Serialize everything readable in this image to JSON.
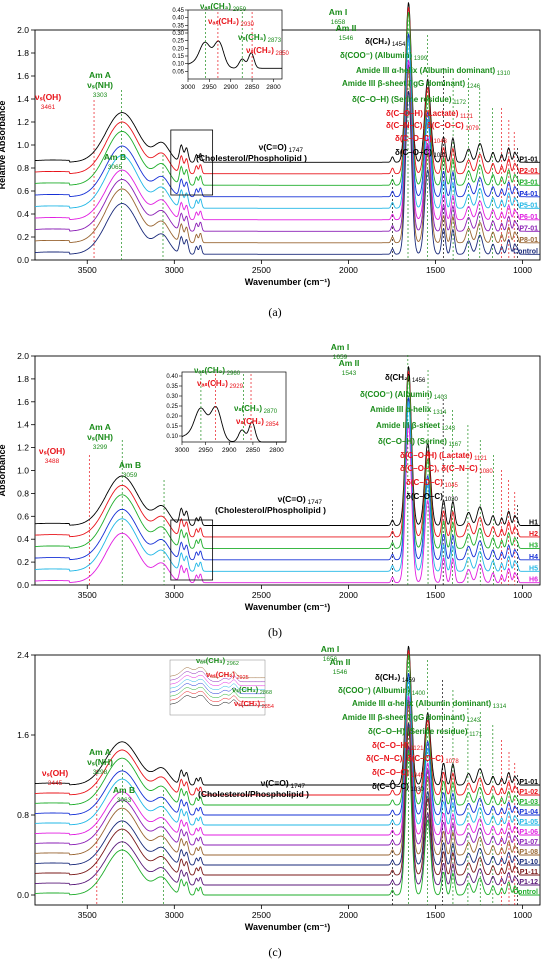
{
  "chart_data": [
    {
      "panel": "(a)",
      "type": "line",
      "xlabel": "Wavenumber (cm⁻¹)",
      "ylabel": "Relative Absorbance",
      "xlim": [
        3800,
        900
      ],
      "ylim": [
        0,
        2.0
      ],
      "xticks": [
        3500,
        3000,
        2500,
        2000,
        1500,
        1000
      ],
      "yticks": [
        0.0,
        0.2,
        0.4,
        0.6,
        0.8,
        1.0,
        1.2,
        1.4,
        1.6,
        1.8,
        2.0
      ],
      "offset": 0.1,
      "series": [
        {
          "name": "P1-01",
          "color": "#000000"
        },
        {
          "name": "P2-01",
          "color": "#e8141b"
        },
        {
          "name": "P3-01",
          "color": "#1fae2b"
        },
        {
          "name": "P4-01",
          "color": "#1630d6"
        },
        {
          "name": "P5-01",
          "color": "#21b7e6"
        },
        {
          "name": "P6-01",
          "color": "#e11ee1"
        },
        {
          "name": "P7-01",
          "color": "#8a1eb5"
        },
        {
          "name": "P8-01",
          "color": "#996633"
        },
        {
          "name": "Control",
          "color": "#1a2a7a"
        }
      ],
      "annotations": [
        {
          "x": 3461,
          "label": "νₛ(OH)",
          "sub": "3461",
          "color": "#e8141b"
        },
        {
          "x": 3303,
          "label": "Am A νₛ(NH)",
          "sub": "3303",
          "color": "#1a8c1a"
        },
        {
          "x": 3065,
          "label": "Am B",
          "sub": "3065",
          "color": "#1a8c1a"
        },
        {
          "x": 1747,
          "label": "ν(C=O)",
          "sub": "1747",
          "color": "#000000",
          "note": "(Cholesterol/Phospholipid )"
        },
        {
          "x": 1658,
          "label": "Am I",
          "sub": "1658",
          "color": "#1a8c1a"
        },
        {
          "x": 1546,
          "label": "Am II",
          "sub": "1546",
          "color": "#1a8c1a"
        },
        {
          "x": 1454,
          "label": "δ(CH₂)",
          "sub": "1454",
          "color": "#000000"
        },
        {
          "x": 1399,
          "label": "δ(COO⁻)",
          "sub": "1399",
          "color": "#1a8c1a",
          "note": "(Albumin)"
        },
        {
          "x": 1310,
          "label": "Amide III α-helix (Albumin dominant)",
          "sub": "1310",
          "color": "#1a8c1a"
        },
        {
          "x": 1246,
          "label": "Amide III β-sheet (IgG dominant)",
          "sub": "1246",
          "color": "#1a8c1a"
        },
        {
          "x": 1172,
          "label": "δ(C–O–H)",
          "sub": "1172",
          "color": "#1a8c1a",
          "note": "(Serine residue)"
        },
        {
          "x": 1121,
          "label": "δ(C–O–H) (Lactate)",
          "sub": "1121",
          "color": "#e8141b"
        },
        {
          "x": 1079,
          "label": "δ(C–N–C), δ(C–O–C)",
          "sub": "1079",
          "color": "#e8141b"
        },
        {
          "x": 1048,
          "label": "δ(C–O–C)",
          "sub": "1048",
          "color": "#e8141b"
        },
        {
          "x": 1030,
          "label": "δ(C–O–C)",
          "sub": "1030",
          "color": "#000000"
        }
      ],
      "inset": {
        "xlim": [
          3000,
          2780
        ],
        "xticks": [
          3000,
          2950,
          2900,
          2850,
          2800
        ],
        "ylim": [
          0,
          0.45
        ],
        "yticks": [
          0.05,
          0.1,
          0.15,
          0.2,
          0.25,
          0.3,
          0.35,
          0.4,
          0.45
        ],
        "annotations": [
          {
            "x": 2959,
            "label": "νₐₛ(CH₃)",
            "sub": "2959",
            "color": "#1a8c1a"
          },
          {
            "x": 2930,
            "label": "νₐₛ(CH₂)",
            "sub": "2930",
            "color": "#e8141b"
          },
          {
            "x": 2873,
            "label": "νₛ(CH₃)",
            "sub": "2873",
            "color": "#1a8c1a"
          },
          {
            "x": 2850,
            "label": "νₛ(CH₂)",
            "sub": "2850",
            "color": "#e8141b"
          }
        ]
      }
    },
    {
      "panel": "(b)",
      "type": "line",
      "xlabel": "Wavenumber (cm⁻¹)",
      "ylabel": "Absorbance",
      "xlim": [
        3800,
        900
      ],
      "ylim": [
        0,
        2.0
      ],
      "xticks": [
        3500,
        3000,
        2500,
        2000,
        1500,
        1000
      ],
      "yticks": [
        0.0,
        0.2,
        0.4,
        0.6,
        0.8,
        1.0,
        1.2,
        1.4,
        1.6,
        1.8,
        2.0
      ],
      "offset": 0.1,
      "series": [
        {
          "name": "H1",
          "color": "#000000"
        },
        {
          "name": "H2",
          "color": "#e8141b"
        },
        {
          "name": "H3",
          "color": "#1fae2b"
        },
        {
          "name": "H4",
          "color": "#1630d6"
        },
        {
          "name": "H5",
          "color": "#21b7e6"
        },
        {
          "name": "H6",
          "color": "#e11ee1"
        }
      ],
      "annotations": [
        {
          "x": 3488,
          "label": "νₛ(OH)",
          "sub": "3488",
          "color": "#e8141b"
        },
        {
          "x": 3299,
          "label": "Am A νₛ(NH)",
          "sub": "3299",
          "color": "#1a8c1a"
        },
        {
          "x": 3059,
          "label": "Am B",
          "sub": "3059",
          "color": "#1a8c1a"
        },
        {
          "x": 1747,
          "label": "ν(C=O)",
          "sub": "1747",
          "color": "#000000",
          "note": "(Cholesterol/Phospholipid )"
        },
        {
          "x": 1659,
          "label": "Am I",
          "sub": "1659",
          "color": "#1a8c1a"
        },
        {
          "x": 1543,
          "label": "Am II",
          "sub": "1543",
          "color": "#1a8c1a"
        },
        {
          "x": 1456,
          "label": "δ(CH₂)",
          "sub": "1456",
          "color": "#000000"
        },
        {
          "x": 1403,
          "label": "δ(COO⁻)",
          "sub": "1403",
          "color": "#1a8c1a",
          "note": "(Albumin)"
        },
        {
          "x": 1314,
          "label": "Amide III α-helix",
          "sub": "1314",
          "color": "#1a8c1a"
        },
        {
          "x": 1243,
          "label": "Amide III β-sheet",
          "sub": "1243",
          "color": "#1a8c1a"
        },
        {
          "x": 1167,
          "label": "δ(C–O–H)",
          "sub": "1167",
          "color": "#1a8c1a",
          "note": "(Serine)"
        },
        {
          "x": 1121,
          "label": "δ(C–O–H) (Lactate)",
          "sub": "1121",
          "color": "#e8141b"
        },
        {
          "x": 1080,
          "label": "δ(C–O–C), δ(C–N–C)",
          "sub": "1080",
          "color": "#e8141b"
        },
        {
          "x": 1045,
          "label": "δ(C–O–C)",
          "sub": "1045",
          "color": "#e8141b"
        },
        {
          "x": 1030,
          "label": "δ(C–O–C)",
          "sub": "1030",
          "color": "#000000"
        }
      ],
      "inset": {
        "xlim": [
          3000,
          2780
        ],
        "xticks": [
          3000,
          2950,
          2900,
          2850,
          2800
        ],
        "ylim": [
          0.07,
          0.42
        ],
        "yticks": [
          0.1,
          0.15,
          0.2,
          0.25,
          0.3,
          0.35,
          0.4
        ],
        "annotations": [
          {
            "x": 2960,
            "label": "νₐₛ(CH₃)",
            "sub": "2960",
            "color": "#1a8c1a"
          },
          {
            "x": 2929,
            "label": "νₐₛ(CH₂)",
            "sub": "2929",
            "color": "#e8141b"
          },
          {
            "x": 2870,
            "label": "νₛ(CH₃)",
            "sub": "2870",
            "color": "#1a8c1a"
          },
          {
            "x": 2854,
            "label": "νₛ(CH₂)",
            "sub": "2854",
            "color": "#e8141b"
          }
        ]
      }
    },
    {
      "panel": "(c)",
      "type": "line",
      "xlabel": "Wavenumber (cm⁻¹)",
      "ylabel": "",
      "xlim": [
        3800,
        900
      ],
      "ylim": [
        -0.1,
        2.4
      ],
      "xticks": [
        3500,
        3000,
        2500,
        2000,
        1500,
        1000
      ],
      "yticks": [
        0.0,
        0.8,
        1.6,
        2.4
      ],
      "offset": 0.1,
      "series": [
        {
          "name": "P1-01",
          "color": "#000000"
        },
        {
          "name": "P1-02",
          "color": "#e8141b"
        },
        {
          "name": "P1-03",
          "color": "#1fae2b"
        },
        {
          "name": "P1-04",
          "color": "#1630d6"
        },
        {
          "name": "P1-05",
          "color": "#21b7e6"
        },
        {
          "name": "P1-06",
          "color": "#e11ee1"
        },
        {
          "name": "P1-07",
          "color": "#8a1eb5"
        },
        {
          "name": "P1-08",
          "color": "#996633"
        },
        {
          "name": "P1-10",
          "color": "#1a2a7a"
        },
        {
          "name": "P1-11",
          "color": "#7a1a1a"
        },
        {
          "name": "P1-12",
          "color": "#5a1a7a"
        },
        {
          "name": "Control",
          "color": "#1fae2b"
        }
      ],
      "annotations": [
        {
          "x": 3445,
          "label": "νₛ(OH)",
          "sub": "3445",
          "color": "#e8141b"
        },
        {
          "x": 3298,
          "label": "Am A νₛ(NH)",
          "sub": "3298",
          "color": "#1a8c1a"
        },
        {
          "x": 3063,
          "label": "Am B",
          "sub": "3063",
          "color": "#1a8c1a"
        },
        {
          "x": 1747,
          "label": "ν(C=O)",
          "sub": "1747",
          "color": "#000000",
          "note": "(Cholesterol/Phospholipid )"
        },
        {
          "x": 1656,
          "label": "Am I",
          "sub": "1656",
          "color": "#1a8c1a"
        },
        {
          "x": 1546,
          "label": "Am II",
          "sub": "1546",
          "color": "#1a8c1a"
        },
        {
          "x": 1459,
          "label": "δ(CH₂)",
          "sub": "1459",
          "color": "#000000"
        },
        {
          "x": 1400,
          "label": "δ(COO⁻)",
          "sub": "1400",
          "color": "#1a8c1a",
          "note": "(Albumin)"
        },
        {
          "x": 1314,
          "label": "Amide III α-helix (Albumin dominant)",
          "sub": "1314",
          "color": "#1a8c1a"
        },
        {
          "x": 1243,
          "label": "Amide III β-sheet (IgG dominant)",
          "sub": "1243",
          "color": "#1a8c1a"
        },
        {
          "x": 1171,
          "label": "δ(C–O–H)",
          "sub": "1171",
          "color": "#1a8c1a",
          "note": "(Serine residue)"
        },
        {
          "x": 1121,
          "label": "δ(C–O–H)",
          "sub": "1121",
          "color": "#e8141b"
        },
        {
          "x": 1078,
          "label": "δ(C–N–C), δ(C–O–C)",
          "sub": "1078",
          "color": "#e8141b"
        },
        {
          "x": 1045,
          "label": "δ(C–O–C)",
          "sub": "1045",
          "color": "#e8141b"
        },
        {
          "x": 1030,
          "label": "δ(C–O–C)",
          "sub": "1030",
          "color": "#000000"
        }
      ],
      "inset_labels": [
        {
          "x": 2962,
          "label": "νₐₛ(CH₃)",
          "sub": "2962",
          "color": "#1a8c1a"
        },
        {
          "x": 2925,
          "label": "νₐₛ(CH₂)",
          "sub": "2925",
          "color": "#e8141b"
        },
        {
          "x": 2868,
          "label": "νₛ(CH₃)",
          "sub": "2868",
          "color": "#1a8c1a"
        },
        {
          "x": 2854,
          "label": "νₛ(CH₂)",
          "sub": "2854",
          "color": "#e8141b"
        }
      ]
    }
  ],
  "captions": [
    "(a)",
    "(b)",
    "(c)"
  ]
}
